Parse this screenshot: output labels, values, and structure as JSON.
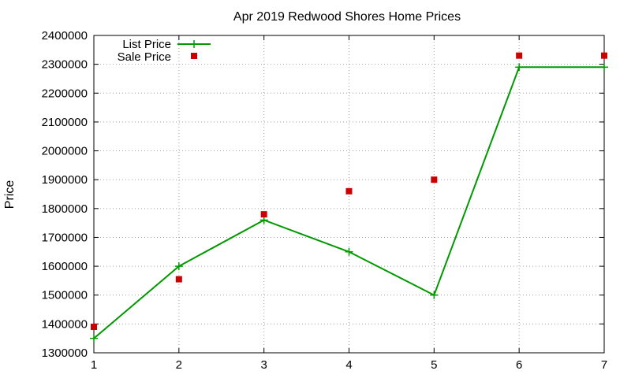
{
  "chart_data": {
    "type": "line",
    "title": "Apr 2019 Redwood Shores Home Prices",
    "xlabel": "",
    "ylabel": "Price",
    "xlim": [
      1,
      7
    ],
    "ylim": [
      1300000,
      2400000
    ],
    "xticks": [
      1,
      2,
      3,
      4,
      5,
      6,
      7
    ],
    "yticks": [
      1300000,
      1400000,
      1500000,
      1600000,
      1700000,
      1800000,
      1900000,
      2000000,
      2100000,
      2200000,
      2300000,
      2400000
    ],
    "grid": true,
    "legend_position": "top-left",
    "series": [
      {
        "name": "List Price",
        "style": "line-with-plus-markers",
        "color": "#009900",
        "x": [
          1,
          2,
          3,
          4,
          5,
          6,
          7
        ],
        "y": [
          1350000,
          1600000,
          1760000,
          1650000,
          1500000,
          2290000,
          2290000
        ]
      },
      {
        "name": "Sale Price",
        "style": "square-markers",
        "color": "#cc0000",
        "x": [
          1,
          2,
          3,
          4,
          5,
          6,
          7
        ],
        "y": [
          1390000,
          1555000,
          1780000,
          1860000,
          1900000,
          2330000,
          2330000
        ]
      }
    ]
  }
}
